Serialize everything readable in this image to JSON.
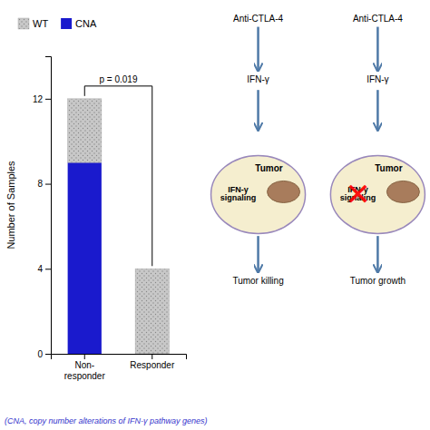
{
  "chart_data": {
    "type": "bar",
    "stacked": true,
    "categories": [
      "Non-\nresponder",
      "Responder"
    ],
    "series": [
      {
        "name": "CNA",
        "color": "#1a1acd",
        "values": [
          9,
          0
        ]
      },
      {
        "name": "WT",
        "color": "#c8c8c8",
        "values": [
          3,
          4
        ]
      }
    ],
    "ylabel": "Number of Samples",
    "ylim": [
      0,
      14
    ],
    "yticks": [
      0,
      4,
      8,
      12
    ],
    "legend": "upper left",
    "annotations": [
      {
        "text": "p = 0.019"
      },
      {
        "text": "(CNA, copy number alterations of IFN-γ pathway genes)",
        "color": "#3333cc"
      },
      {
        "text": "Anti-CTLA-4"
      },
      {
        "text": "IFN-γ"
      },
      {
        "text": "Tumor"
      },
      {
        "text": "IFN-γ\nsignaling"
      },
      {
        "text": "Tumor killing"
      },
      {
        "text": "Anti-CTLA-4"
      },
      {
        "text": "IFN-γ"
      },
      {
        "text": "Tumor"
      },
      {
        "text": "IFN-γ\nsignaling"
      },
      {
        "text": "✕",
        "color": "red"
      },
      {
        "text": "Tumor growth"
      }
    ]
  }
}
